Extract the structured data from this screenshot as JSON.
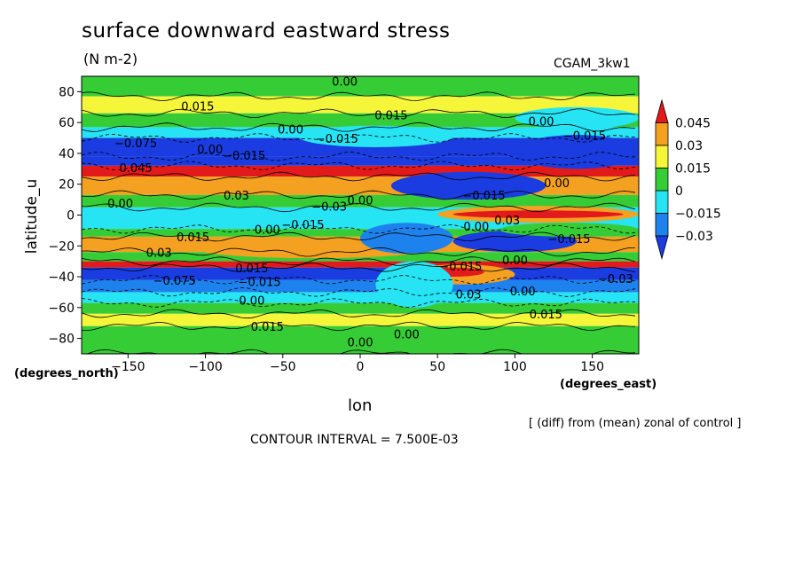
{
  "figure": {
    "title": "surface downward eastward stress",
    "units": "(N m-2)",
    "dataset": "CGAM_3kw1",
    "note": "[ (diff) from (mean) zonal of control ]",
    "contour_interval": "CONTOUR INTERVAL = 7.500E-03"
  },
  "chart_data": {
    "type": "heatmap",
    "xlabel": "lon",
    "ylabel": "latitude_u",
    "x_units": "(degrees_east)",
    "y_units": "(degrees_north)",
    "xlim": [
      -180,
      180
    ],
    "ylim": [
      -90,
      90
    ],
    "x_ticks": [
      -150,
      -100,
      -50,
      0,
      50,
      100,
      150
    ],
    "y_ticks": [
      -80,
      -60,
      -40,
      -20,
      0,
      20,
      40,
      60,
      80
    ],
    "colorbar": {
      "levels": [
        "0.045",
        "0.03",
        "0.015",
        "0",
        "−0.015",
        "−0.03"
      ],
      "colors": [
        "#e31a1c",
        "#f4a020",
        "#f5f53a",
        "#36cc36",
        "#26e4f4",
        "#1e82ee",
        "#1a3ce0"
      ]
    },
    "bands": [
      {
        "lat": [
          77,
          90
        ],
        "value": 0
      },
      {
        "lat": [
          66,
          77
        ],
        "value": 0.02
      },
      {
        "lat": [
          57,
          66
        ],
        "value": 0.008
      },
      {
        "lat": [
          50,
          57
        ],
        "value": -0.01
      },
      {
        "lat": [
          38,
          50
        ],
        "value": -0.035
      },
      {
        "lat": [
          32,
          38
        ],
        "value": -0.045
      },
      {
        "lat": [
          25,
          32
        ],
        "value": 0.05
      },
      {
        "lat": [
          13,
          25
        ],
        "value": 0.03
      },
      {
        "lat": [
          5,
          13
        ],
        "value": 0.005
      },
      {
        "lat": [
          -9,
          5
        ],
        "value": -0.012
      },
      {
        "lat": [
          -14,
          -9
        ],
        "value": 0.01
      },
      {
        "lat": [
          -24,
          -14
        ],
        "value": 0.03
      },
      {
        "lat": [
          -30,
          -24
        ],
        "value": 0.008
      },
      {
        "lat": [
          -34,
          -30
        ],
        "value": 0.05
      },
      {
        "lat": [
          -42,
          -34
        ],
        "value": -0.045
      },
      {
        "lat": [
          -50,
          -42
        ],
        "value": -0.03
      },
      {
        "lat": [
          -57,
          -50
        ],
        "value": -0.01
      },
      {
        "lat": [
          -64,
          -57
        ],
        "value": 0.008
      },
      {
        "lat": [
          -72,
          -64
        ],
        "value": 0.02
      },
      {
        "lat": [
          -90,
          -72
        ],
        "value": 0.004
      }
    ],
    "patches": [
      {
        "lon": [
          -180,
          20
        ],
        "lat": [
          25,
          31
        ],
        "value": 0.05
      },
      {
        "lon": [
          -160,
          10
        ],
        "lat": [
          13,
          25
        ],
        "value": 0.03
      },
      {
        "lon": [
          -110,
          50
        ],
        "lat": [
          -28,
          -14
        ],
        "value": 0.03
      },
      {
        "lon": [
          50,
          180
        ],
        "lat": [
          -5,
          6
        ],
        "value": 0.03
      },
      {
        "lon": [
          60,
          170
        ],
        "lat": [
          -2,
          3
        ],
        "value": 0.05
      },
      {
        "lon": [
          30,
          100
        ],
        "lat": [
          -45,
          -32
        ],
        "value": 0.03
      },
      {
        "lon": [
          40,
          80
        ],
        "lat": [
          -40,
          -34
        ],
        "value": 0.045
      },
      {
        "lon": [
          10,
          60
        ],
        "lat": [
          -60,
          -30
        ],
        "value": -0.012
      },
      {
        "lon": [
          0,
          60
        ],
        "lat": [
          -25,
          -5
        ],
        "value": -0.03
      },
      {
        "lon": [
          60,
          140
        ],
        "lat": [
          -24,
          -10
        ],
        "value": -0.035
      },
      {
        "lon": [
          20,
          120
        ],
        "lat": [
          10,
          28
        ],
        "value": -0.035
      },
      {
        "lon": [
          100,
          180
        ],
        "lat": [
          30,
          52
        ],
        "value": -0.04
      },
      {
        "lon": [
          100,
          180
        ],
        "lat": [
          56,
          70
        ],
        "value": -0.005
      },
      {
        "lon": [
          -40,
          60
        ],
        "lat": [
          44,
          58
        ],
        "value": -0.01
      },
      {
        "lon": [
          90,
          180
        ],
        "lat": [
          -14,
          -5
        ],
        "value": 0.0
      }
    ],
    "contour_labels": [
      {
        "lon": -10,
        "lat": 86,
        "text": "0.00"
      },
      {
        "lon": -105,
        "lat": 70,
        "text": "0.015"
      },
      {
        "lon": 20,
        "lat": 64,
        "text": "0.015"
      },
      {
        "lon": -45,
        "lat": 55,
        "text": "0.00"
      },
      {
        "lon": -15,
        "lat": 49,
        "text": "−0.015"
      },
      {
        "lon": 117,
        "lat": 60,
        "text": "0.00"
      },
      {
        "lon": 145,
        "lat": 51,
        "text": "−0.015"
      },
      {
        "lon": -145,
        "lat": 46,
        "text": "−0.075"
      },
      {
        "lon": -97,
        "lat": 42,
        "text": "0.00"
      },
      {
        "lon": -75,
        "lat": 38,
        "text": "−0.015"
      },
      {
        "lon": -145,
        "lat": 30,
        "text": "0.045"
      },
      {
        "lon": 127,
        "lat": 20,
        "text": "0.00"
      },
      {
        "lon": -80,
        "lat": 12,
        "text": "0.03"
      },
      {
        "lon": 80,
        "lat": 12,
        "text": "−0.015"
      },
      {
        "lon": -155,
        "lat": 7,
        "text": "0.00"
      },
      {
        "lon": -20,
        "lat": 5,
        "text": "−0.03"
      },
      {
        "lon": 0,
        "lat": 9,
        "text": "0.00"
      },
      {
        "lon": 95,
        "lat": -4,
        "text": "0.03"
      },
      {
        "lon": -60,
        "lat": -10,
        "text": "0.00"
      },
      {
        "lon": -37,
        "lat": -7,
        "text": "−0.015"
      },
      {
        "lon": 75,
        "lat": -8,
        "text": "0.00"
      },
      {
        "lon": -108,
        "lat": -15,
        "text": "0.015"
      },
      {
        "lon": 135,
        "lat": -16,
        "text": "−0.015"
      },
      {
        "lon": -130,
        "lat": -25,
        "text": "0.03"
      },
      {
        "lon": 100,
        "lat": -30,
        "text": "0.00"
      },
      {
        "lon": -70,
        "lat": -35,
        "text": "0.015"
      },
      {
        "lon": 65,
        "lat": -34,
        "text": "−0.015"
      },
      {
        "lon": -120,
        "lat": -43,
        "text": "−0.075"
      },
      {
        "lon": -65,
        "lat": -44,
        "text": "−0.015"
      },
      {
        "lon": 165,
        "lat": -42,
        "text": "−0.03"
      },
      {
        "lon": 70,
        "lat": -52,
        "text": "0.03"
      },
      {
        "lon": 105,
        "lat": -50,
        "text": "0.00"
      },
      {
        "lon": -70,
        "lat": -56,
        "text": "0.00"
      },
      {
        "lon": 120,
        "lat": -65,
        "text": "0.015"
      },
      {
        "lon": -60,
        "lat": -73,
        "text": "0.015"
      },
      {
        "lon": 30,
        "lat": -78,
        "text": "0.00"
      },
      {
        "lon": 0,
        "lat": -83,
        "text": "0.00"
      }
    ]
  }
}
